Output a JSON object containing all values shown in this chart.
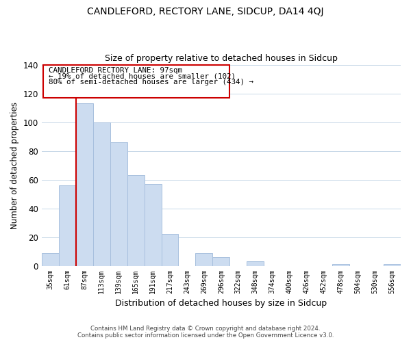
{
  "title": "CANDLEFORD, RECTORY LANE, SIDCUP, DA14 4QJ",
  "subtitle": "Size of property relative to detached houses in Sidcup",
  "xlabel": "Distribution of detached houses by size in Sidcup",
  "ylabel": "Number of detached properties",
  "bar_labels": [
    "35sqm",
    "61sqm",
    "87sqm",
    "113sqm",
    "139sqm",
    "165sqm",
    "191sqm",
    "217sqm",
    "243sqm",
    "269sqm",
    "296sqm",
    "322sqm",
    "348sqm",
    "374sqm",
    "400sqm",
    "426sqm",
    "452sqm",
    "478sqm",
    "504sqm",
    "530sqm",
    "556sqm"
  ],
  "bar_values": [
    9,
    56,
    113,
    100,
    86,
    63,
    57,
    22,
    0,
    9,
    6,
    0,
    3,
    0,
    0,
    0,
    0,
    1,
    0,
    0,
    1
  ],
  "bar_color": "#ccdcf0",
  "bar_edge_color": "#a8c0de",
  "vline_color": "#cc0000",
  "vline_x_index": 2,
  "ylim": [
    0,
    140
  ],
  "yticks": [
    0,
    20,
    40,
    60,
    80,
    100,
    120,
    140
  ],
  "annotation_title": "CANDLEFORD RECTORY LANE: 97sqm",
  "annotation_line1": "← 19% of detached houses are smaller (102)",
  "annotation_line2": "80% of semi-detached houses are larger (434) →",
  "footer_line1": "Contains HM Land Registry data © Crown copyright and database right 2024.",
  "footer_line2": "Contains public sector information licensed under the Open Government Licence v3.0.",
  "background_color": "#ffffff",
  "grid_color": "#c8d8e8"
}
